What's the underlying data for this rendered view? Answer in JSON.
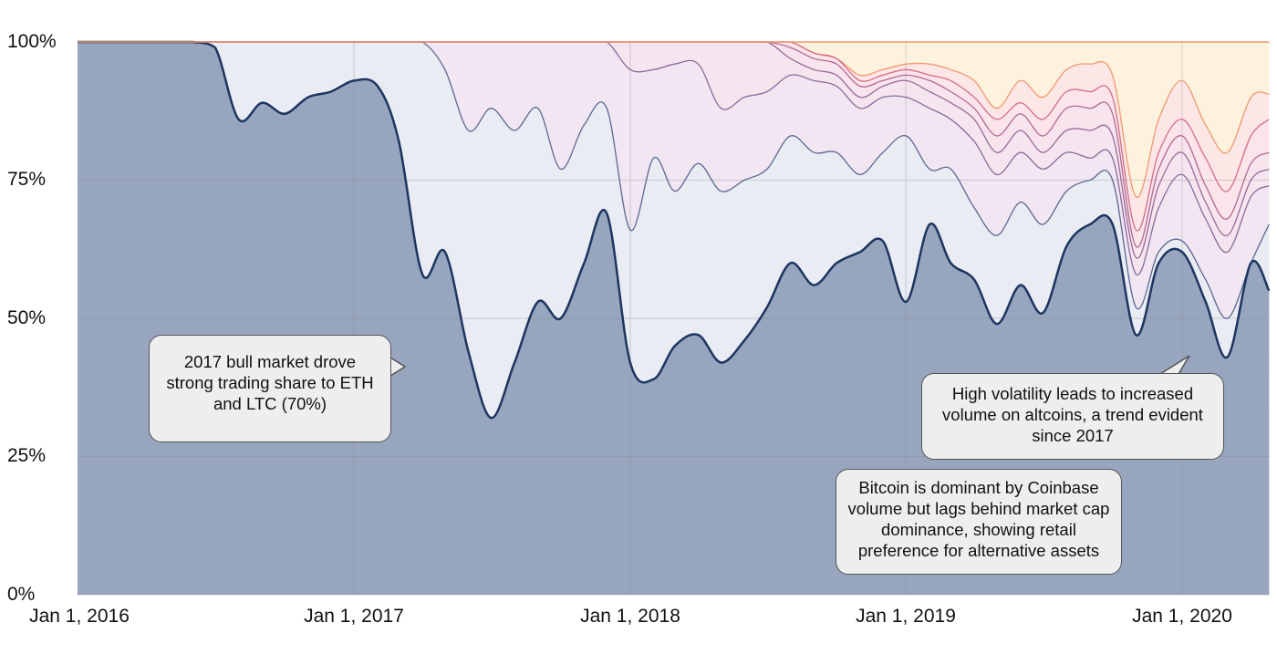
{
  "chart_data": {
    "type": "area",
    "stacked": true,
    "normalized": true,
    "value_mode": "cumulative_top_percent",
    "x": [
      "2016-01-01",
      "2016-02-01",
      "2016-03-01",
      "2016-04-01",
      "2016-05-01",
      "2016-06-01",
      "2016-07-01",
      "2016-08-01",
      "2016-09-01",
      "2016-10-01",
      "2016-11-01",
      "2016-12-01",
      "2017-01-01",
      "2017-02-01",
      "2017-03-01",
      "2017-04-01",
      "2017-05-01",
      "2017-06-01",
      "2017-07-01",
      "2017-08-01",
      "2017-09-01",
      "2017-10-01",
      "2017-11-01",
      "2017-12-01",
      "2018-01-01",
      "2018-02-01",
      "2018-03-01",
      "2018-04-01",
      "2018-05-01",
      "2018-06-01",
      "2018-07-01",
      "2018-08-01",
      "2018-09-01",
      "2018-10-01",
      "2018-11-01",
      "2018-12-01",
      "2019-01-01",
      "2019-02-01",
      "2019-03-01",
      "2019-04-01",
      "2019-05-01",
      "2019-06-01",
      "2019-07-01",
      "2019-08-01",
      "2019-09-01",
      "2019-10-01",
      "2019-11-01",
      "2019-12-01",
      "2020-01-01",
      "2020-02-01",
      "2020-03-01",
      "2020-04-01",
      "2020-04-25"
    ],
    "series": [
      {
        "values": [
          100,
          100,
          100,
          100,
          100,
          100,
          99,
          86,
          89,
          87,
          90,
          91,
          93,
          92,
          82,
          58,
          62,
          44,
          32,
          42,
          53,
          50,
          60,
          69,
          42,
          39,
          45,
          47,
          42,
          46,
          52,
          60,
          56,
          60,
          62,
          64,
          53,
          67,
          60,
          57,
          49,
          56,
          51,
          63,
          67,
          67,
          47,
          60,
          62,
          53,
          43,
          60,
          55
        ],
        "fill": "#97a5be",
        "line": "#1d3560"
      },
      {
        "values": [
          100,
          100,
          100,
          100,
          100,
          100,
          100,
          100,
          100,
          100,
          100,
          100,
          100,
          100,
          100,
          100,
          95,
          84,
          88,
          84,
          88,
          77,
          85,
          88,
          66,
          79,
          73,
          78,
          73,
          75,
          77,
          83,
          80,
          80,
          76,
          80,
          83,
          77,
          77,
          70,
          65,
          71,
          67,
          73,
          75,
          75,
          52,
          62,
          64,
          57,
          50,
          60,
          67
        ],
        "fill": "#e9ecf3",
        "line": "#5b6890"
      },
      {
        "values": [
          100,
          100,
          100,
          100,
          100,
          100,
          100,
          100,
          100,
          100,
          100,
          100,
          100,
          100,
          100,
          100,
          100,
          100,
          100,
          100,
          100,
          100,
          100,
          100,
          95,
          95,
          96,
          96,
          88,
          90,
          91,
          94,
          93,
          92,
          88,
          90,
          90,
          88,
          86,
          82,
          76,
          80,
          77,
          80,
          79,
          79,
          58,
          70,
          76,
          68,
          62,
          72,
          74
        ],
        "fill": "#f1e6f1",
        "line": "#8a6a9e"
      },
      {
        "values": [
          100,
          100,
          100,
          100,
          100,
          100,
          100,
          100,
          100,
          100,
          100,
          100,
          100,
          100,
          100,
          100,
          100,
          100,
          100,
          100,
          100,
          100,
          100,
          100,
          100,
          100,
          100,
          100,
          100,
          100,
          100,
          97,
          95,
          94,
          90,
          92,
          93,
          91,
          89,
          86,
          80,
          84,
          80,
          84,
          84,
          83,
          61,
          74,
          80,
          71,
          65,
          75,
          77
        ],
        "fill": "#f5e5ee",
        "line": "#9a6a9a"
      },
      {
        "values": [
          100,
          100,
          100,
          100,
          100,
          100,
          100,
          100,
          100,
          100,
          100,
          100,
          100,
          100,
          100,
          100,
          100,
          100,
          100,
          100,
          100,
          100,
          100,
          100,
          100,
          100,
          100,
          100,
          100,
          100,
          100,
          99,
          97,
          96,
          92,
          93,
          94,
          93,
          91,
          88,
          83,
          87,
          83,
          88,
          88,
          87,
          63,
          77,
          83,
          74,
          68,
          78,
          80
        ],
        "fill": "#f8e4ec",
        "line": "#b06a92"
      },
      {
        "values": [
          100,
          100,
          100,
          100,
          100,
          100,
          100,
          100,
          100,
          100,
          100,
          100,
          100,
          100,
          100,
          100,
          100,
          100,
          100,
          100,
          100,
          100,
          100,
          100,
          100,
          100,
          100,
          100,
          100,
          100,
          100,
          100,
          98,
          97,
          93,
          94,
          95,
          94,
          93,
          90,
          86,
          89,
          86,
          91,
          91,
          90,
          66,
          80,
          86,
          79,
          73,
          83,
          86
        ],
        "fill": "#fbe4ea",
        "line": "#d06e88"
      },
      {
        "values": [
          100,
          100,
          100,
          100,
          100,
          100,
          100,
          100,
          100,
          100,
          100,
          100,
          100,
          100,
          100,
          100,
          100,
          100,
          100,
          100,
          100,
          100,
          100,
          100,
          100,
          100,
          100,
          100,
          100,
          100,
          100,
          100,
          98,
          97,
          94,
          95,
          96,
          96,
          95,
          93,
          88,
          93,
          90,
          95,
          96,
          94,
          72,
          86,
          93,
          85,
          80,
          90,
          90.6
        ],
        "fill": "#fce6e6",
        "line": "#ee9a70"
      }
    ],
    "top_fill": "#fdf2de",
    "ylim": [
      0,
      100
    ],
    "yticks": [
      "0%",
      "25%",
      "50%",
      "75%",
      "100%"
    ],
    "xticks": [
      "Jan 1, 2016",
      "Jan 1, 2017",
      "Jan 1, 2018",
      "Jan 1, 2019",
      "Jan 1, 2020"
    ],
    "grid": true,
    "legend": "none",
    "annotations": [
      "2017 bull market drove strong trading share to ETH and LTC (70%)",
      "High volatility leads to increased volume on altcoins, a trend evident since 2017",
      "Bitcoin is dominant by Coinbase volume but lags behind market cap dominance, showing retail preference for alternative assets"
    ]
  }
}
